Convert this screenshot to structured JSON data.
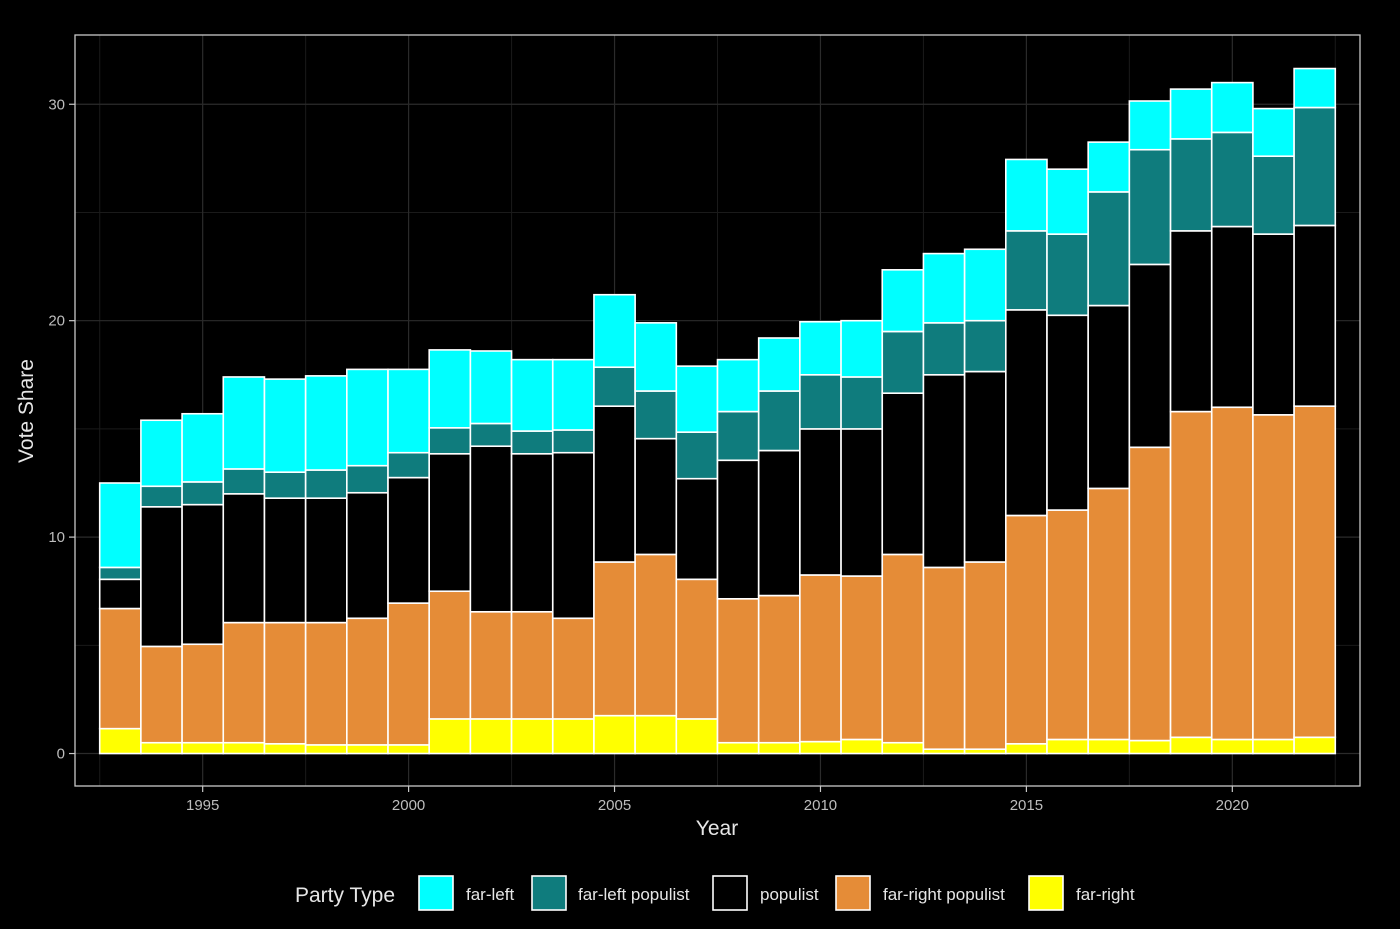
{
  "colors": {
    "background": "#000000",
    "panel_border": "#c8c8c8",
    "grid_major": "#2b2b2b",
    "grid_minor": "#1a1a1a",
    "text": "#e6e6e6",
    "tick_text": "#bdbdbd",
    "bar_outline": "#ffffff"
  },
  "chart_data": {
    "type": "bar",
    "stacked": true,
    "title": "",
    "xlabel": "Year",
    "ylabel": "Vote Share",
    "xlim": [
      1991.9,
      2023.1
    ],
    "ylim": [
      -1.5,
      33.2
    ],
    "x_ticks": [
      1995,
      2000,
      2005,
      2010,
      2015,
      2020
    ],
    "x_tick_labels": [
      "1995",
      "2000",
      "2005",
      "2010",
      "2015",
      "2020"
    ],
    "y_ticks": [
      0,
      10,
      20,
      30
    ],
    "y_tick_labels": [
      "0",
      "10",
      "20",
      "30"
    ],
    "grid": true,
    "legend": {
      "title": "Party Type",
      "position": "bottom"
    },
    "x": [
      1993,
      1994,
      1995,
      1996,
      1997,
      1998,
      1999,
      2000,
      2001,
      2002,
      2003,
      2004,
      2005,
      2006,
      2007,
      2008,
      2009,
      2010,
      2011,
      2012,
      2013,
      2014,
      2015,
      2016,
      2017,
      2018,
      2019,
      2020,
      2021,
      2022
    ],
    "series": [
      {
        "name": "far-right",
        "color": "#ffff00",
        "values": [
          1.15,
          0.5,
          0.5,
          0.5,
          0.45,
          0.4,
          0.4,
          0.4,
          1.6,
          1.6,
          1.6,
          1.6,
          1.75,
          1.75,
          1.6,
          0.5,
          0.5,
          0.55,
          0.65,
          0.5,
          0.2,
          0.2,
          0.45,
          0.65,
          0.65,
          0.6,
          0.75,
          0.65,
          0.65,
          0.75
        ]
      },
      {
        "name": "far-right populist",
        "color": "#e58c37",
        "values": [
          5.55,
          4.45,
          4.55,
          5.55,
          5.6,
          5.65,
          5.85,
          6.55,
          5.9,
          4.95,
          4.95,
          4.65,
          7.1,
          7.45,
          6.45,
          6.65,
          6.8,
          7.7,
          7.55,
          8.7,
          8.4,
          8.65,
          10.55,
          10.6,
          11.6,
          13.55,
          15.05,
          15.35,
          15.0,
          15.3
        ]
      },
      {
        "name": "populist",
        "color": "#000000",
        "values": [
          1.35,
          6.45,
          6.45,
          5.95,
          5.75,
          5.75,
          5.8,
          5.8,
          6.35,
          7.65,
          7.3,
          7.65,
          7.2,
          5.35,
          4.65,
          6.4,
          6.7,
          6.75,
          6.8,
          7.45,
          8.9,
          8.8,
          9.5,
          9.0,
          8.45,
          8.45,
          8.35,
          8.35,
          8.35,
          8.35
        ]
      },
      {
        "name": "far-left populist",
        "color": "#0f7c7d",
        "values": [
          0.55,
          0.95,
          1.05,
          1.15,
          1.2,
          1.3,
          1.25,
          1.15,
          1.2,
          1.05,
          1.05,
          1.05,
          1.8,
          2.2,
          2.15,
          2.25,
          2.75,
          2.5,
          2.4,
          2.85,
          2.4,
          2.35,
          3.65,
          3.75,
          5.25,
          5.3,
          4.25,
          4.35,
          3.6,
          5.45
        ]
      },
      {
        "name": "far-left",
        "color": "#00ffff",
        "values": [
          3.9,
          3.05,
          3.15,
          4.25,
          4.3,
          4.35,
          4.45,
          3.85,
          3.6,
          3.35,
          3.3,
          3.25,
          3.35,
          3.15,
          3.05,
          2.4,
          2.45,
          2.45,
          2.6,
          2.85,
          3.2,
          3.3,
          3.3,
          3.0,
          2.3,
          2.25,
          2.3,
          2.3,
          2.2,
          1.8
        ]
      }
    ],
    "legend_order": [
      "far-left",
      "far-left populist",
      "populist",
      "far-right populist",
      "far-right"
    ]
  }
}
